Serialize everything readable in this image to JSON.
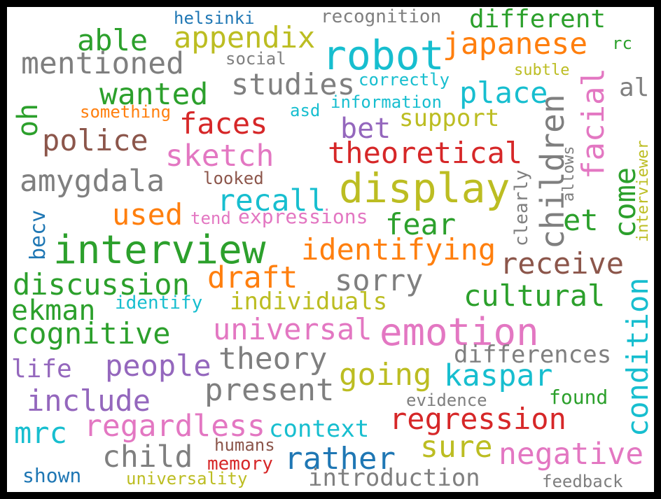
{
  "words": [
    {
      "text": "helsinki",
      "color": "#1f77b4"
    },
    {
      "text": "recognition",
      "color": "#7f7f7f"
    },
    {
      "text": "different",
      "color": "#2ca02c"
    },
    {
      "text": "able",
      "color": "#2ca02c"
    },
    {
      "text": "appendix",
      "color": "#bcbd22"
    },
    {
      "text": "robot",
      "color": "#17becf"
    },
    {
      "text": "japanese",
      "color": "#ff7f0e"
    },
    {
      "text": "rc",
      "color": "#2ca02c"
    },
    {
      "text": "mentioned",
      "color": "#7f7f7f"
    },
    {
      "text": "social",
      "color": "#7f7f7f"
    },
    {
      "text": "subtle",
      "color": "#bcbd22"
    },
    {
      "text": "correctly",
      "color": "#17becf"
    },
    {
      "text": "studies",
      "color": "#7f7f7f"
    },
    {
      "text": "wanted",
      "color": "#2ca02c"
    },
    {
      "text": "place",
      "color": "#17becf"
    },
    {
      "text": "al",
      "color": "#7f7f7f"
    },
    {
      "text": "information",
      "color": "#17becf"
    },
    {
      "text": "asd",
      "color": "#17becf"
    },
    {
      "text": "something",
      "color": "#ff7f0e"
    },
    {
      "text": "oh",
      "color": "#2ca02c"
    },
    {
      "text": "faces",
      "color": "#d62728"
    },
    {
      "text": "support",
      "color": "#bcbd22"
    },
    {
      "text": "bet",
      "color": "#9467bd"
    },
    {
      "text": "children",
      "color": "#7f7f7f"
    },
    {
      "text": "facial",
      "color": "#e377c2"
    },
    {
      "text": "police",
      "color": "#8c564b"
    },
    {
      "text": "theoretical",
      "color": "#d62728"
    },
    {
      "text": "sketch",
      "color": "#e377c2"
    },
    {
      "text": "allows",
      "color": "#7f7f7f"
    },
    {
      "text": "interviewer",
      "color": "#bcbd22"
    },
    {
      "text": "amygdala",
      "color": "#7f7f7f"
    },
    {
      "text": "looked",
      "color": "#8c564b"
    },
    {
      "text": "display",
      "color": "#bcbd22"
    },
    {
      "text": "clearly",
      "color": "#7f7f7f"
    },
    {
      "text": "come",
      "color": "#2ca02c"
    },
    {
      "text": "recall",
      "color": "#17becf"
    },
    {
      "text": "et",
      "color": "#2ca02c"
    },
    {
      "text": "used",
      "color": "#ff7f0e"
    },
    {
      "text": "tend",
      "color": "#e377c2"
    },
    {
      "text": "expressions",
      "color": "#e377c2"
    },
    {
      "text": "fear",
      "color": "#2ca02c"
    },
    {
      "text": "becv",
      "color": "#1f77b4"
    },
    {
      "text": "interview",
      "color": "#2ca02c"
    },
    {
      "text": "identifying",
      "color": "#ff7f0e"
    },
    {
      "text": "receive",
      "color": "#8c564b"
    },
    {
      "text": "draft",
      "color": "#ff7f0e"
    },
    {
      "text": "sorry",
      "color": "#7f7f7f"
    },
    {
      "text": "discussion",
      "color": "#2ca02c"
    },
    {
      "text": "condition",
      "color": "#17becf"
    },
    {
      "text": "cultural",
      "color": "#2ca02c"
    },
    {
      "text": "individuals",
      "color": "#bcbd22"
    },
    {
      "text": "ekman",
      "color": "#2ca02c"
    },
    {
      "text": "identify",
      "color": "#17becf"
    },
    {
      "text": "universal",
      "color": "#e377c2"
    },
    {
      "text": "emotion",
      "color": "#e377c2"
    },
    {
      "text": "cognitive",
      "color": "#2ca02c"
    },
    {
      "text": "differences",
      "color": "#7f7f7f"
    },
    {
      "text": "theory",
      "color": "#7f7f7f"
    },
    {
      "text": "life",
      "color": "#9467bd"
    },
    {
      "text": "people",
      "color": "#9467bd"
    },
    {
      "text": "going",
      "color": "#bcbd22"
    },
    {
      "text": "kaspar",
      "color": "#17becf"
    },
    {
      "text": "present",
      "color": "#7f7f7f"
    },
    {
      "text": "include",
      "color": "#9467bd"
    },
    {
      "text": "found",
      "color": "#2ca02c"
    },
    {
      "text": "evidence",
      "color": "#7f7f7f"
    },
    {
      "text": "regression",
      "color": "#d62728"
    },
    {
      "text": "mrc",
      "color": "#17becf"
    },
    {
      "text": "regardless",
      "color": "#e377c2"
    },
    {
      "text": "context",
      "color": "#17becf"
    },
    {
      "text": "sure",
      "color": "#bcbd22"
    },
    {
      "text": "negative",
      "color": "#e377c2"
    },
    {
      "text": "child",
      "color": "#7f7f7f"
    },
    {
      "text": "humans",
      "color": "#8c564b"
    },
    {
      "text": "rather",
      "color": "#1f77b4"
    },
    {
      "text": "memory",
      "color": "#d62728"
    },
    {
      "text": "shown",
      "color": "#1f77b4"
    },
    {
      "text": "universality",
      "color": "#bcbd22"
    },
    {
      "text": "introduction",
      "color": "#7f7f7f"
    },
    {
      "text": "feedback",
      "color": "#7f7f7f"
    }
  ]
}
